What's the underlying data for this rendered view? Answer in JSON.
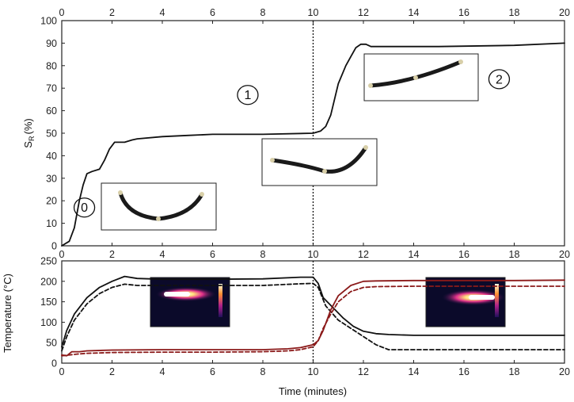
{
  "chart_data": [
    {
      "type": "line",
      "xlim": [
        0,
        20
      ],
      "ylim": [
        0,
        100
      ],
      "xticks": [
        0,
        2,
        4,
        6,
        8,
        10,
        12,
        14,
        16,
        18,
        20
      ],
      "yticks": [
        0,
        10,
        20,
        30,
        40,
        50,
        60,
        70,
        80,
        90,
        100
      ],
      "xticks_top": true,
      "ylabel": "S",
      "ylabel_subscript": "R",
      "ylabel_unit": "(%)",
      "series": [
        {
          "color": "#111111",
          "style": "solid",
          "x": [
            0,
            0.3,
            0.5,
            0.7,
            0.85,
            1.0,
            1.2,
            1.5,
            1.7,
            1.9,
            2.1,
            2.3,
            2.5,
            2.8,
            3.0,
            4.0,
            5.0,
            6.0,
            8.0,
            10.0,
            10.3,
            10.5,
            10.7,
            11.0,
            11.3,
            11.5,
            11.7,
            11.9,
            12.1,
            12.3,
            13.0,
            15.0,
            18.0,
            20.0
          ],
          "y": [
            0,
            2,
            8,
            20,
            27,
            32,
            33,
            34,
            38,
            43,
            46,
            46,
            46,
            47,
            47.5,
            48.5,
            49,
            49.5,
            49.5,
            50,
            51,
            53,
            58,
            72,
            80,
            84,
            88,
            89.5,
            89.5,
            88.5,
            88.5,
            88.5,
            89,
            90
          ]
        }
      ],
      "annotations": [
        {
          "label": "0",
          "x": 0.9,
          "y": 17
        },
        {
          "label": "1",
          "x": 7.4,
          "y": 67
        },
        {
          "label": "2",
          "x": 17.4,
          "y": 74
        }
      ],
      "vline_x": 10,
      "vline_style": "dotted"
    },
    {
      "type": "line",
      "xlim": [
        0,
        20
      ],
      "ylim": [
        0,
        250
      ],
      "xticks": [
        0,
        2,
        4,
        6,
        8,
        10,
        12,
        14,
        16,
        18,
        20
      ],
      "yticks": [
        0,
        50,
        100,
        150,
        200,
        250
      ],
      "xlabel": "Time (minutes)",
      "ylabel": "Temperature (°C)",
      "series": [
        {
          "color": "#111111",
          "style": "solid",
          "x": [
            0,
            0.2,
            0.5,
            1.0,
            1.5,
            2.0,
            2.5,
            3.0,
            4.0,
            6.0,
            8.0,
            9.5,
            10.0,
            10.2,
            10.4,
            10.8,
            11.2,
            11.6,
            12.0,
            12.5,
            13.0,
            14.0,
            16.0,
            18.0,
            20.0
          ],
          "y": [
            40,
            80,
            120,
            160,
            185,
            200,
            212,
            207,
            205,
            205,
            206,
            210,
            210,
            195,
            160,
            135,
            110,
            90,
            78,
            72,
            70,
            68,
            68,
            68,
            68
          ]
        },
        {
          "color": "#111111",
          "style": "dashed",
          "x": [
            0,
            0.2,
            0.5,
            1.0,
            1.5,
            2.0,
            2.5,
            3.0,
            4.0,
            6.0,
            8.0,
            9.5,
            10.0,
            10.2,
            10.5,
            11.0,
            11.5,
            12.0,
            12.5,
            13.0,
            14.0,
            16.0,
            18.0,
            20.0
          ],
          "y": [
            30,
            65,
            105,
            145,
            170,
            185,
            193,
            190,
            190,
            190,
            190,
            194,
            195,
            185,
            140,
            105,
            85,
            65,
            45,
            33,
            33,
            33,
            33,
            33
          ]
        },
        {
          "color": "#8b1a1a",
          "style": "solid",
          "x": [
            0,
            0.2,
            0.4,
            0.7,
            1.0,
            2.0,
            4.0,
            6.0,
            8.0,
            9.0,
            9.5,
            10.0,
            10.2,
            10.4,
            10.7,
            11.0,
            11.5,
            12.0,
            12.5,
            14.0,
            16.0,
            18.0,
            20.0
          ],
          "y": [
            20,
            18,
            28,
            28,
            30,
            32,
            33,
            33,
            33,
            35,
            38,
            45,
            55,
            80,
            130,
            165,
            190,
            200,
            201,
            202,
            202,
            202,
            203
          ]
        },
        {
          "color": "#8b1a1a",
          "style": "dashed",
          "x": [
            0,
            0.3,
            0.6,
            1.0,
            2.0,
            4.0,
            6.0,
            8.0,
            9.0,
            9.5,
            10.0,
            10.2,
            10.4,
            10.7,
            11.0,
            11.5,
            12.0,
            12.5,
            14.0,
            16.0,
            18.0,
            20.0
          ],
          "y": [
            18,
            20,
            22,
            24,
            26,
            27,
            27,
            28,
            30,
            33,
            40,
            55,
            85,
            120,
            150,
            175,
            185,
            187,
            188,
            188,
            188,
            188
          ]
        }
      ],
      "vline_x": 10,
      "vline_style": "dotted"
    }
  ]
}
